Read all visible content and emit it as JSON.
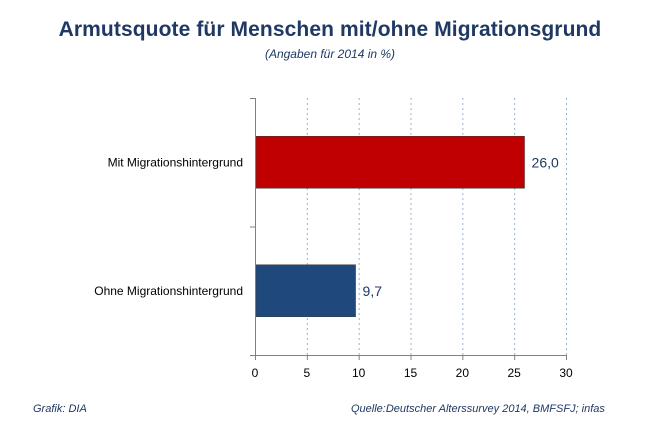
{
  "chart_data": {
    "type": "bar",
    "orientation": "horizontal",
    "title": "Armutsquote für Menschen mit/ohne Migrationsgrund",
    "subtitle": "(Angaben für 2014 in %)",
    "categories": [
      "Mit Migrationshintergrund",
      "Ohne Migrationshintergrund"
    ],
    "values": [
      26.0,
      9.7
    ],
    "value_labels": [
      "26,0",
      "9,7"
    ],
    "bar_colors": [
      "#c00000",
      "#1f497d"
    ],
    "xlim": [
      0,
      30
    ],
    "x_ticks": [
      0,
      5,
      10,
      15,
      20,
      25,
      30
    ],
    "grid": true,
    "grid_style": "dashed vertical",
    "legend": "none"
  },
  "footer": {
    "left": "Grafik: DIA",
    "right": "Quelle:Deutscher Alterssurvey 2014, BMFSFJ; infas"
  },
  "colors": {
    "title": "#1f3864",
    "grid": "#9bb1d4",
    "axis": "#808080"
  }
}
